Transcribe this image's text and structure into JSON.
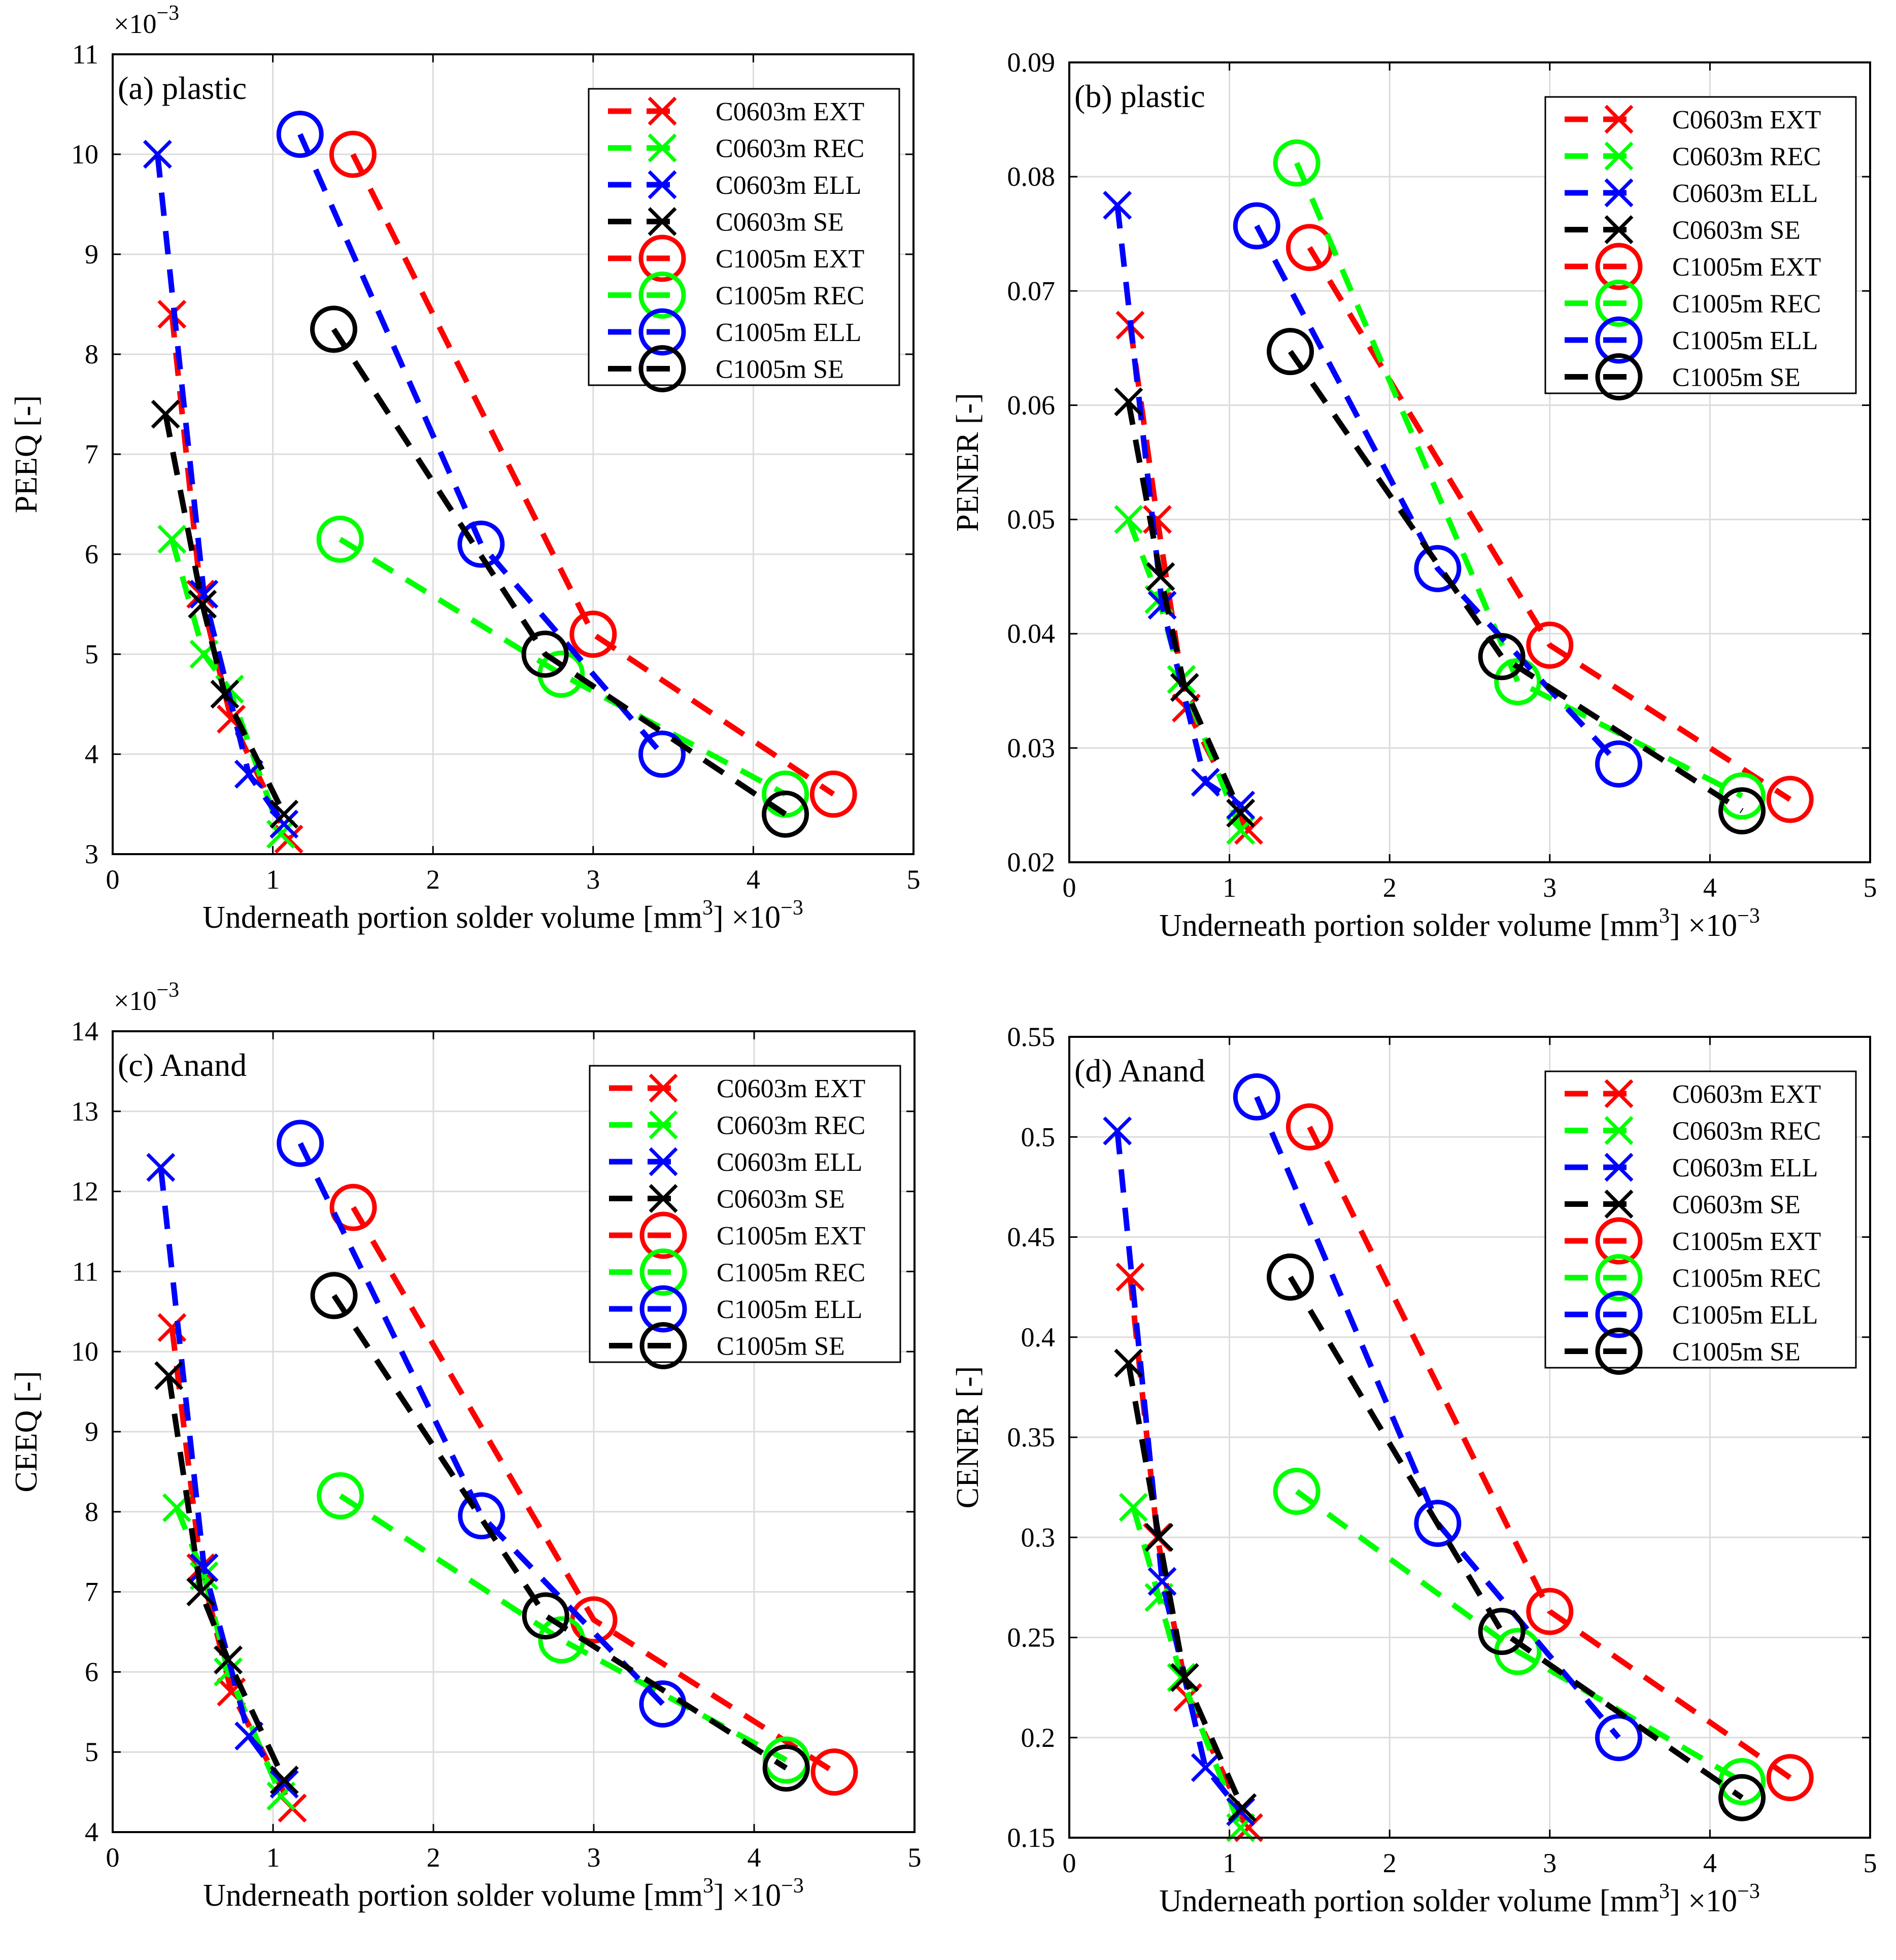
{
  "series_styles": [
    {
      "key": "c0603_ext",
      "color": "#ff0000",
      "marker": "x"
    },
    {
      "key": "c0603_rec",
      "color": "#00ff00",
      "marker": "x"
    },
    {
      "key": "c0603_ell",
      "color": "#0000ff",
      "marker": "x"
    },
    {
      "key": "c0603_se",
      "color": "#000000",
      "marker": "x"
    },
    {
      "key": "c1005_ext",
      "color": "#ff0000",
      "marker": "o"
    },
    {
      "key": "c1005_rec",
      "color": "#00ff00",
      "marker": "o"
    },
    {
      "key": "c1005_ell",
      "color": "#0000ff",
      "marker": "o"
    },
    {
      "key": "c1005_se",
      "color": "#000000",
      "marker": "o"
    }
  ],
  "chart_data": [
    {
      "type": "line",
      "title": "(a) plastic",
      "xlabel": "Underneath portion solder volume [mm3]",
      "xlabel_main": "Underneath portion solder volume [mm",
      "xlabel_sup": "3",
      "xlabel_close": "]",
      "x_multiplier": "×10",
      "x_multiplier_exp": "−3",
      "ylabel": "PEEQ [-]",
      "y_multiplier": "×10",
      "y_multiplier_exp": "−3",
      "xlim": [
        0,
        5
      ],
      "ylim": [
        3,
        11
      ],
      "xticks": [
        0,
        1,
        2,
        3,
        4,
        5
      ],
      "xtick_labels": [
        "0",
        "1",
        "2",
        "3",
        "4",
        "5"
      ],
      "yticks": [
        3,
        4,
        5,
        6,
        7,
        8,
        9,
        10,
        11
      ],
      "ytick_labels": [
        "3",
        "4",
        "5",
        "6",
        "7",
        "8",
        "9",
        "10",
        "11"
      ],
      "grid": true,
      "legend": "top-right",
      "series": [
        {
          "name": "C0603m EXT",
          "x": [
            0.37,
            0.55,
            0.74,
            1.1
          ],
          "y": [
            8.4,
            5.6,
            4.35,
            3.15
          ]
        },
        {
          "name": "C0603m REC",
          "x": [
            0.37,
            0.57,
            0.73,
            1.05
          ],
          "y": [
            6.15,
            5.0,
            4.65,
            3.2
          ]
        },
        {
          "name": "C0603m ELL",
          "x": [
            0.28,
            0.57,
            0.85,
            1.07
          ],
          "y": [
            10.0,
            5.6,
            3.8,
            3.3
          ]
        },
        {
          "name": "C0603m SE",
          "x": [
            0.33,
            0.56,
            0.7,
            1.07
          ],
          "y": [
            7.4,
            5.5,
            4.6,
            3.4
          ]
        },
        {
          "name": "C1005m EXT",
          "x": [
            1.5,
            3.0,
            4.5
          ],
          "y": [
            10.0,
            5.2,
            3.6
          ]
        },
        {
          "name": "C1005m REC",
          "x": [
            1.42,
            2.8,
            4.2
          ],
          "y": [
            6.15,
            4.8,
            3.6
          ]
        },
        {
          "name": "C1005m ELL",
          "x": [
            1.17,
            2.3,
            3.43
          ],
          "y": [
            10.2,
            6.1,
            4.0
          ]
        },
        {
          "name": "C1005m SE",
          "x": [
            1.38,
            2.7,
            4.2
          ],
          "y": [
            8.25,
            5.0,
            3.4
          ]
        }
      ]
    },
    {
      "type": "line",
      "title": "(b) plastic",
      "xlabel": "Underneath portion solder volume [mm3]",
      "xlabel_main": "Underneath portion solder volume [mm",
      "xlabel_sup": "3",
      "xlabel_close": "]",
      "x_multiplier": "×10",
      "x_multiplier_exp": "−3",
      "ylabel": "PENER [-]",
      "y_multiplier": "",
      "y_multiplier_exp": "",
      "xlim": [
        0,
        5
      ],
      "ylim": [
        0.02,
        0.09
      ],
      "xticks": [
        0,
        1,
        2,
        3,
        4,
        5
      ],
      "xtick_labels": [
        "0",
        "1",
        "2",
        "3",
        "4",
        "5"
      ],
      "yticks": [
        0.02,
        0.03,
        0.04,
        0.05,
        0.06,
        0.07,
        0.08,
        0.09
      ],
      "ytick_labels": [
        "0.02",
        "0.03",
        "0.04",
        "0.05",
        "0.06",
        "0.07",
        "0.08",
        "0.09"
      ],
      "grid": true,
      "legend": "top-right",
      "series": [
        {
          "name": "C0603m EXT",
          "x": [
            0.38,
            0.55,
            0.73,
            1.12
          ],
          "y": [
            0.067,
            0.05,
            0.0335,
            0.0228
          ]
        },
        {
          "name": "C0603m REC",
          "x": [
            0.37,
            0.56,
            0.7,
            1.07
          ],
          "y": [
            0.05,
            0.043,
            0.036,
            0.0228
          ]
        },
        {
          "name": "C0603m ELL",
          "x": [
            0.3,
            0.58,
            0.85,
            1.07
          ],
          "y": [
            0.0775,
            0.0425,
            0.027,
            0.025
          ]
        },
        {
          "name": "C0603m SE",
          "x": [
            0.37,
            0.57,
            0.72,
            1.07
          ],
          "y": [
            0.0603,
            0.045,
            0.0353,
            0.0243
          ]
        },
        {
          "name": "C1005m EXT",
          "x": [
            1.5,
            3.0,
            4.5
          ],
          "y": [
            0.0738,
            0.039,
            0.0255
          ]
        },
        {
          "name": "C1005m REC",
          "x": [
            1.42,
            2.8,
            4.2
          ],
          "y": [
            0.0812,
            0.0358,
            0.0258
          ]
        },
        {
          "name": "C1005m ELL",
          "x": [
            1.17,
            2.3,
            3.43
          ],
          "y": [
            0.0757,
            0.0457,
            0.0286
          ]
        },
        {
          "name": "C1005m SE",
          "x": [
            1.38,
            2.7,
            4.2
          ],
          "y": [
            0.0647,
            0.038,
            0.0245
          ]
        }
      ]
    },
    {
      "type": "line",
      "title": "(c) Anand",
      "xlabel": "Underneath portion solder volume [mm3]",
      "xlabel_main": "Underneath portion solder volume [mm",
      "xlabel_sup": "3",
      "xlabel_close": "]",
      "x_multiplier": "×10",
      "x_multiplier_exp": "−3",
      "ylabel": "CEEQ [-]",
      "y_multiplier": "×10",
      "y_multiplier_exp": "−3",
      "xlim": [
        0,
        5
      ],
      "ylim": [
        4,
        14
      ],
      "xticks": [
        0,
        1,
        2,
        3,
        4,
        5
      ],
      "xtick_labels": [
        "0",
        "1",
        "2",
        "3",
        "4",
        "5"
      ],
      "yticks": [
        4,
        5,
        6,
        7,
        8,
        9,
        10,
        11,
        12,
        13,
        14
      ],
      "ytick_labels": [
        "4",
        "5",
        "6",
        "7",
        "8",
        "9",
        "10",
        "11",
        "12",
        "13",
        "14"
      ],
      "grid": true,
      "legend": "top-right",
      "series": [
        {
          "name": "C0603m EXT",
          "x": [
            0.37,
            0.55,
            0.74,
            1.12
          ],
          "y": [
            10.3,
            7.3,
            5.75,
            4.3
          ]
        },
        {
          "name": "C0603m REC",
          "x": [
            0.4,
            0.57,
            0.72,
            1.05
          ],
          "y": [
            8.05,
            7.2,
            6.0,
            4.45
          ]
        },
        {
          "name": "C0603m ELL",
          "x": [
            0.3,
            0.57,
            0.85,
            1.07
          ],
          "y": [
            12.3,
            7.3,
            5.2,
            4.6
          ]
        },
        {
          "name": "C0603m SE",
          "x": [
            0.35,
            0.55,
            0.72,
            1.07
          ],
          "y": [
            9.7,
            7.0,
            6.15,
            4.65
          ]
        },
        {
          "name": "C1005m EXT",
          "x": [
            1.5,
            3.0,
            4.5
          ],
          "y": [
            11.8,
            6.65,
            4.75
          ]
        },
        {
          "name": "C1005m REC",
          "x": [
            1.42,
            2.8,
            4.2
          ],
          "y": [
            8.2,
            6.4,
            4.9
          ]
        },
        {
          "name": "C1005m ELL",
          "x": [
            1.17,
            2.3,
            3.43
          ],
          "y": [
            12.6,
            7.95,
            5.6
          ]
        },
        {
          "name": "C1005m SE",
          "x": [
            1.38,
            2.7,
            4.2
          ],
          "y": [
            10.7,
            6.7,
            4.8
          ]
        }
      ]
    },
    {
      "type": "line",
      "title": "(d) Anand",
      "xlabel": "Underneath portion solder volume [mm3]",
      "xlabel_main": "Underneath portion solder volume [mm",
      "xlabel_sup": "3",
      "xlabel_close": "]",
      "x_multiplier": "×10",
      "x_multiplier_exp": "−3",
      "ylabel": "CENER [-]",
      "y_multiplier": "",
      "y_multiplier_exp": "",
      "xlim": [
        0,
        5
      ],
      "ylim": [
        0.15,
        0.55
      ],
      "xticks": [
        0,
        1,
        2,
        3,
        4,
        5
      ],
      "xtick_labels": [
        "0",
        "1",
        "2",
        "3",
        "4",
        "5"
      ],
      "yticks": [
        0.15,
        0.2,
        0.25,
        0.3,
        0.35,
        0.4,
        0.45,
        0.5,
        0.55
      ],
      "ytick_labels": [
        "0.15",
        "0.2",
        "0.25",
        "0.3",
        "0.35",
        "0.4",
        "0.45",
        "0.5",
        "0.55"
      ],
      "grid": true,
      "legend": "top-right",
      "series": [
        {
          "name": "C0603m EXT",
          "x": [
            0.38,
            0.55,
            0.74,
            1.12
          ],
          "y": [
            0.43,
            0.3,
            0.22,
            0.155
          ]
        },
        {
          "name": "C0603m REC",
          "x": [
            0.4,
            0.56,
            0.7,
            1.07
          ],
          "y": [
            0.315,
            0.27,
            0.23,
            0.155
          ]
        },
        {
          "name": "C0603m ELL",
          "x": [
            0.3,
            0.58,
            0.85,
            1.07
          ],
          "y": [
            0.503,
            0.278,
            0.185,
            0.163
          ]
        },
        {
          "name": "C0603m SE",
          "x": [
            0.37,
            0.56,
            0.72,
            1.08
          ],
          "y": [
            0.387,
            0.3,
            0.23,
            0.165
          ]
        },
        {
          "name": "C1005m EXT",
          "x": [
            1.5,
            3.0,
            4.5
          ],
          "y": [
            0.505,
            0.263,
            0.18
          ]
        },
        {
          "name": "C1005m REC",
          "x": [
            1.42,
            2.8,
            4.2
          ],
          "y": [
            0.323,
            0.243,
            0.178
          ]
        },
        {
          "name": "C1005m ELL",
          "x": [
            1.17,
            2.3,
            3.43
          ],
          "y": [
            0.52,
            0.307,
            0.2
          ]
        },
        {
          "name": "C1005m SE",
          "x": [
            1.38,
            2.7,
            4.2
          ],
          "y": [
            0.43,
            0.253,
            0.17
          ]
        }
      ]
    }
  ]
}
